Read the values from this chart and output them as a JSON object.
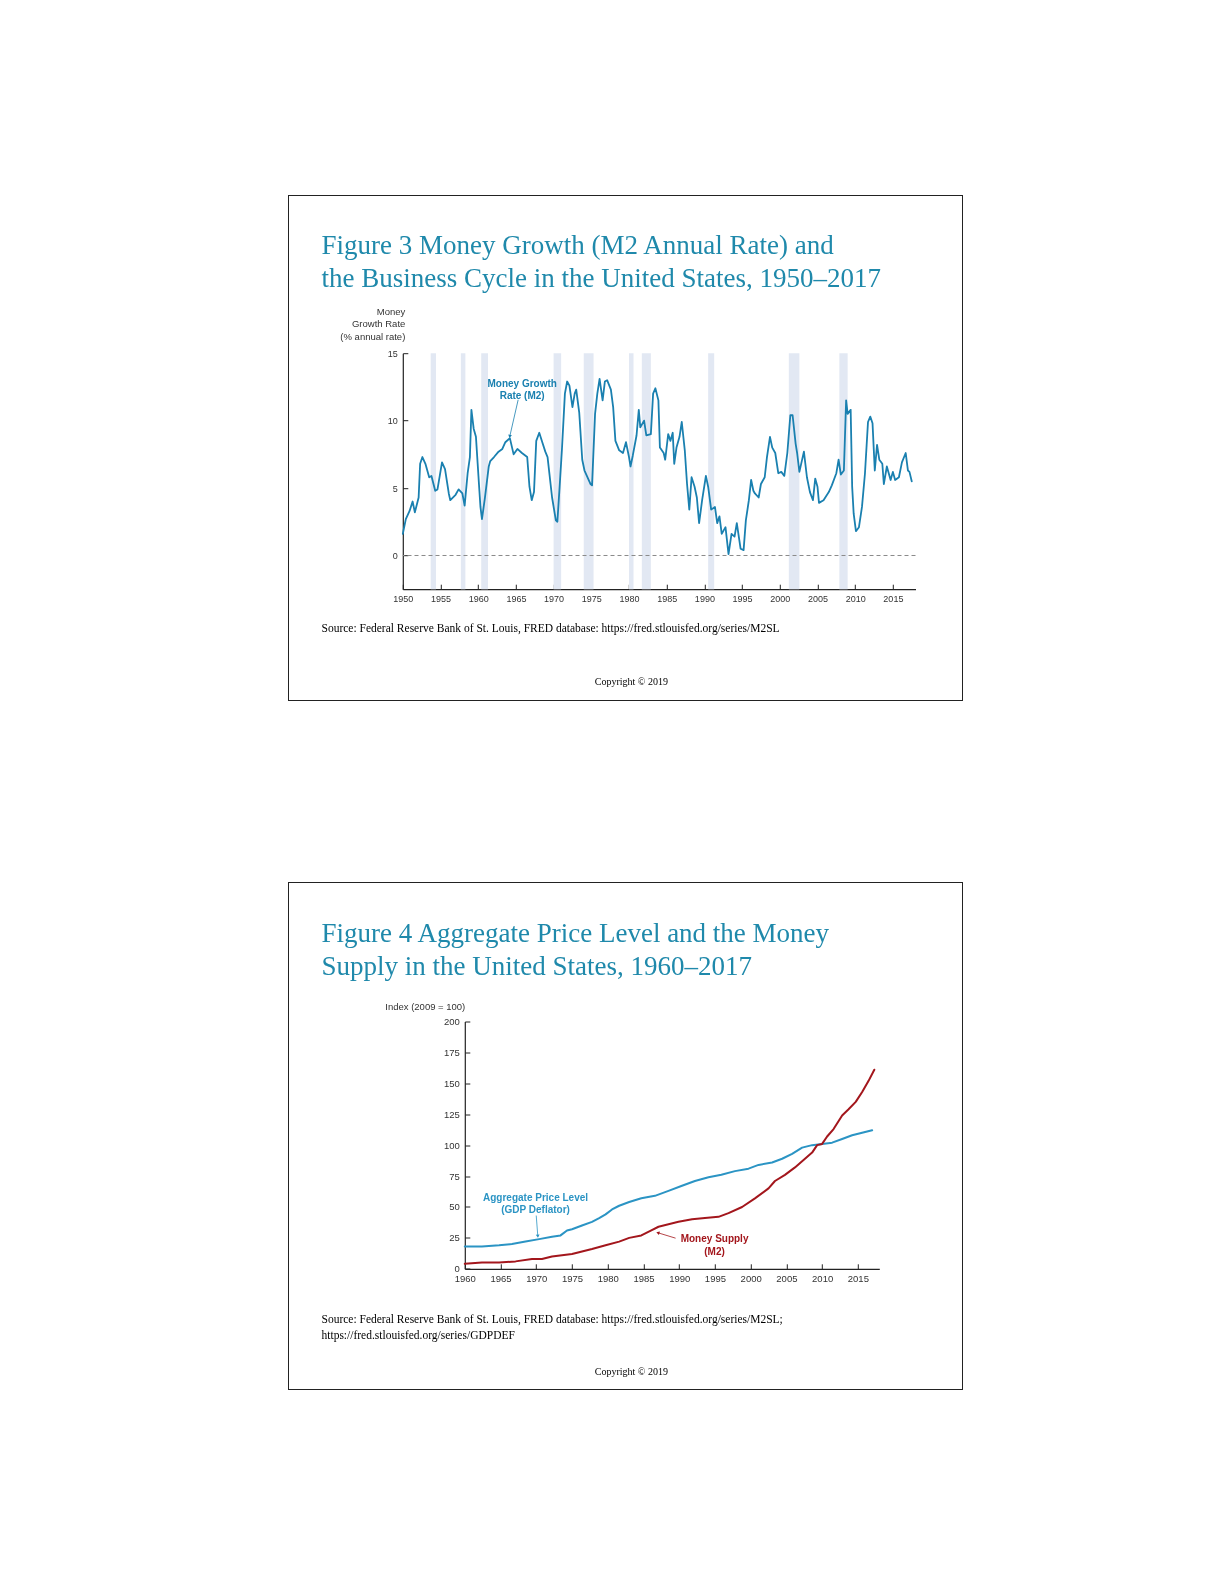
{
  "chart_data": [
    {
      "type": "line",
      "title": "Figure 3 Money Growth (M2 Annual Rate) and\nthe Business Cycle in the United States, 1950–2017",
      "ylabel": "Money\nGrowth Rate\n(% annual rate)",
      "annotations": [
        "Source: Federal Reserve Bank of St. Louis, FRED database: https://fred.stlouisfed.org/series/M2SL",
        "Copyright © 2019"
      ],
      "x": [
        1950.0,
        1950.4,
        1950.9,
        1951.3,
        1951.6,
        1952.1,
        1952.3,
        1952.6,
        1953.0,
        1953.5,
        1953.8,
        1954.3,
        1954.6,
        1955.2,
        1955.6,
        1956.1,
        1956.3,
        1957.0,
        1957.4,
        1957.9,
        1958.2,
        1958.6,
        1958.9,
        1959.1,
        1959.4,
        1959.7,
        1960.1,
        1960.3,
        1960.5,
        1960.9,
        1961.4,
        1961.6,
        1962.1,
        1962.7,
        1963.2,
        1963.6,
        1964.2,
        1964.7,
        1965.2,
        1965.8,
        1966.5,
        1966.8,
        1967.1,
        1967.4,
        1967.7,
        1968.1,
        1968.5,
        1968.9,
        1969.2,
        1969.8,
        1970.3,
        1970.5,
        1970.8,
        1971.1,
        1971.5,
        1971.8,
        1972.1,
        1972.5,
        1972.8,
        1973.0,
        1973.4,
        1973.8,
        1974.1,
        1974.5,
        1974.9,
        1975.1,
        1975.5,
        1975.8,
        1976.1,
        1976.5,
        1976.8,
        1977.1,
        1977.6,
        1977.9,
        1978.2,
        1978.7,
        1979.2,
        1979.6,
        1980.0,
        1980.2,
        1980.5,
        1981.0,
        1981.3,
        1981.5,
        1982.0,
        1982.3,
        1982.9,
        1983.2,
        1983.5,
        1983.9,
        1984.1,
        1984.6,
        1984.8,
        1985.2,
        1985.5,
        1985.8,
        1986.0,
        1986.3,
        1986.7,
        1987.0,
        1987.4,
        1987.7,
        1988.0,
        1988.3,
        1988.7,
        1989.0,
        1989.3,
        1989.7,
        1990.2,
        1990.5,
        1990.9,
        1991.4,
        1991.7,
        1992.0,
        1992.3,
        1992.8,
        1993.2,
        1993.6,
        1994.0,
        1994.3,
        1994.8,
        1995.2,
        1995.5,
        1995.9,
        1996.2,
        1996.5,
        1996.7,
        1997.2,
        1997.5,
        1998.0,
        1998.3,
        1998.7,
        1999.0,
        1999.4,
        1999.8,
        2000.2,
        2000.6,
        2001.0,
        2001.4,
        2001.7,
        2002.1,
        2002.3,
        2002.6,
        2003.2,
        2003.6,
        2004.0,
        2004.4,
        2004.7,
        2005.0,
        2005.2,
        2005.8,
        2006.5,
        2006.9,
        2007.5,
        2007.8,
        2008.1,
        2008.5,
        2008.8,
        2009.0,
        2009.4,
        2009.6,
        2009.8,
        2010.1,
        2010.5,
        2010.9,
        2011.3,
        2011.7,
        2012.0,
        2012.3,
        2012.6,
        2012.9,
        2013.2,
        2013.6,
        2013.8,
        2014.2,
        2014.7,
        2015.0,
        2015.3,
        2015.8,
        2016.2,
        2016.7,
        2017.0,
        2017.2,
        2017.5
      ],
      "series": [
        {
          "name": "Money Growth\nRate (M2)",
          "color": "#1a80b0",
          "values": [
            1.6,
            2.7,
            3.3,
            4.0,
            3.2,
            4.3,
            6.8,
            7.3,
            6.8,
            5.8,
            5.9,
            4.8,
            4.9,
            6.9,
            6.4,
            4.6,
            4.1,
            4.5,
            4.9,
            4.6,
            3.7,
            6.1,
            7.3,
            10.8,
            9.4,
            8.8,
            5.3,
            3.6,
            2.7,
            4.3,
            6.6,
            7.0,
            7.3,
            7.7,
            7.9,
            8.4,
            8.7,
            7.5,
            7.9,
            7.6,
            7.3,
            5.1,
            4.1,
            4.7,
            8.5,
            9.1,
            8.4,
            7.7,
            7.3,
            4.3,
            2.6,
            2.5,
            5.1,
            7.8,
            12.0,
            12.9,
            12.6,
            11.0,
            12.0,
            12.3,
            10.6,
            7.1,
            6.3,
            5.8,
            5.3,
            5.2,
            10.5,
            12.0,
            13.1,
            11.5,
            12.9,
            13.0,
            12.3,
            11.0,
            8.5,
            7.8,
            7.6,
            8.4,
            7.3,
            6.6,
            7.4,
            8.9,
            10.8,
            9.5,
            10.0,
            8.9,
            9.0,
            12.0,
            12.4,
            11.5,
            8.0,
            7.6,
            7.1,
            9.0,
            8.5,
            9.1,
            6.8,
            8.0,
            8.8,
            9.9,
            7.8,
            5.3,
            3.4,
            5.8,
            5.1,
            4.3,
            2.4,
            4.1,
            5.9,
            5.1,
            3.4,
            3.6,
            2.4,
            2.9,
            1.6,
            2.1,
            0.1,
            1.6,
            1.4,
            2.4,
            0.5,
            0.4,
            2.6,
            4.1,
            5.6,
            4.8,
            4.6,
            4.3,
            5.3,
            5.8,
            7.3,
            8.8,
            8.0,
            7.6,
            6.1,
            6.2,
            5.9,
            7.6,
            10.4,
            10.4,
            8.3,
            7.6,
            6.2,
            7.7,
            5.8,
            4.7,
            4.1,
            5.7,
            5.1,
            3.9,
            4.1,
            4.7,
            5.2,
            6.1,
            7.1,
            6.0,
            6.3,
            11.5,
            10.5,
            10.8,
            5.1,
            3.1,
            1.8,
            2.1,
            3.6,
            6.1,
            9.9,
            10.3,
            9.8,
            6.3,
            8.2,
            7.1,
            6.8,
            5.3,
            6.6,
            5.6,
            6.2,
            5.6,
            5.8,
            6.9,
            7.6,
            6.3,
            6.2,
            5.5
          ]
        }
      ],
      "xlim": [
        1950,
        2018
      ],
      "xticks": [
        1950,
        1955,
        1960,
        1965,
        1970,
        1975,
        1980,
        1985,
        1990,
        1995,
        2000,
        2005,
        2010,
        2015
      ],
      "ylim": [
        -2.5,
        15
      ],
      "yticks": [
        0,
        5,
        10,
        15
      ],
      "ref_lines": [
        {
          "axis": "y",
          "value": 0,
          "line_style": "dashed",
          "color": "#8a8a8a"
        }
      ],
      "bands": [
        {
          "axis": "x",
          "from": 1953.7,
          "to": 1954.4,
          "color": "#e2e8f3"
        },
        {
          "axis": "x",
          "from": 1957.7,
          "to": 1958.3,
          "color": "#e2e8f3"
        },
        {
          "axis": "x",
          "from": 1960.4,
          "to": 1961.3,
          "color": "#e2e8f3"
        },
        {
          "axis": "x",
          "from": 1970.0,
          "to": 1971.0,
          "color": "#e2e8f3"
        },
        {
          "axis": "x",
          "from": 1974.0,
          "to": 1975.3,
          "color": "#e2e8f3"
        },
        {
          "axis": "x",
          "from": 1980.0,
          "to": 1980.6,
          "color": "#e2e8f3"
        },
        {
          "axis": "x",
          "from": 1981.7,
          "to": 1982.9,
          "color": "#e2e8f3"
        },
        {
          "axis": "x",
          "from": 1990.5,
          "to": 1991.3,
          "color": "#e2e8f3"
        },
        {
          "axis": "x",
          "from": 2001.2,
          "to": 2002.6,
          "color": "#e2e8f3"
        },
        {
          "axis": "x",
          "from": 2007.9,
          "to": 2009.0,
          "color": "#e2e8f3"
        }
      ]
    },
    {
      "type": "line",
      "title": "Figure 4 Aggregate Price Level and the Money\nSupply in the United States, 1960–2017",
      "ylabel": "Index (2009 = 100)",
      "annotations": [
        "Source: Federal Reserve Bank of St. Louis, FRED database: https://fred.stlouisfed.org/series/M2SL;\nhttps://fred.stlouisfed.org/series/GDPDEF",
        "Copyright © 2019"
      ],
      "series": [
        {
          "name": "Aggregate Price Level\n(GDP Deflator)",
          "color": "#2b94c4",
          "x": [
            1960.0,
            1962.4,
            1964.8,
            1966.6,
            1968.5,
            1970.4,
            1972.2,
            1973.4,
            1974.3,
            1975.0,
            1976.4,
            1977.8,
            1978.8,
            1979.7,
            1980.6,
            1981.6,
            1983.0,
            1984.7,
            1986.6,
            1988.5,
            1990.3,
            1992.2,
            1994.1,
            1995.9,
            1997.8,
            1999.7,
            2001.1,
            2003.0,
            2004.4,
            2005.8,
            2007.2,
            2008.6,
            2010.0,
            2011.4,
            2012.8,
            2014.2,
            2015.6,
            2017.0
          ],
          "values": [
            18,
            18,
            19,
            20,
            22,
            24,
            26,
            27,
            31,
            32,
            35,
            38,
            41,
            44,
            48,
            51,
            54,
            57,
            59,
            63,
            67,
            71,
            74,
            76,
            79,
            81,
            84,
            86,
            89,
            93,
            98,
            100,
            101,
            102,
            105,
            108,
            110,
            112
          ]
        },
        {
          "name": "Money Supply\n(M2)",
          "color": "#a3161c",
          "x": [
            1960.0,
            1962.4,
            1964.8,
            1967.1,
            1969.4,
            1970.8,
            1972.2,
            1973.6,
            1975.0,
            1976.4,
            1977.8,
            1979.7,
            1981.6,
            1983.0,
            1984.7,
            1986.1,
            1987.1,
            1988.5,
            1989.9,
            1991.8,
            1993.6,
            1995.5,
            1996.9,
            1998.8,
            2000.6,
            2002.5,
            2003.4,
            2004.8,
            2006.2,
            2007.6,
            2008.6,
            2009.3,
            2010.0,
            2010.7,
            2011.6,
            2012.8,
            2013.7,
            2014.7,
            2015.6,
            2016.5,
            2017.3
          ],
          "values": [
            4,
            5,
            5,
            6,
            8,
            8,
            10,
            11,
            12,
            14,
            16,
            19,
            22,
            25,
            27,
            31,
            34,
            36,
            38,
            40,
            41,
            42,
            45,
            50,
            57,
            65,
            71,
            76,
            82,
            89,
            94,
            100,
            101,
            107,
            113,
            124,
            129,
            135,
            143,
            152,
            161
          ]
        }
      ],
      "xlim": [
        1960,
        2018
      ],
      "xticks": [
        1960,
        1965,
        1970,
        1975,
        1980,
        1985,
        1990,
        1995,
        2000,
        2005,
        2010,
        2015
      ],
      "ylim": [
        0,
        200
      ],
      "yticks": [
        0,
        25,
        50,
        75,
        100,
        125,
        150,
        175,
        200
      ]
    }
  ]
}
